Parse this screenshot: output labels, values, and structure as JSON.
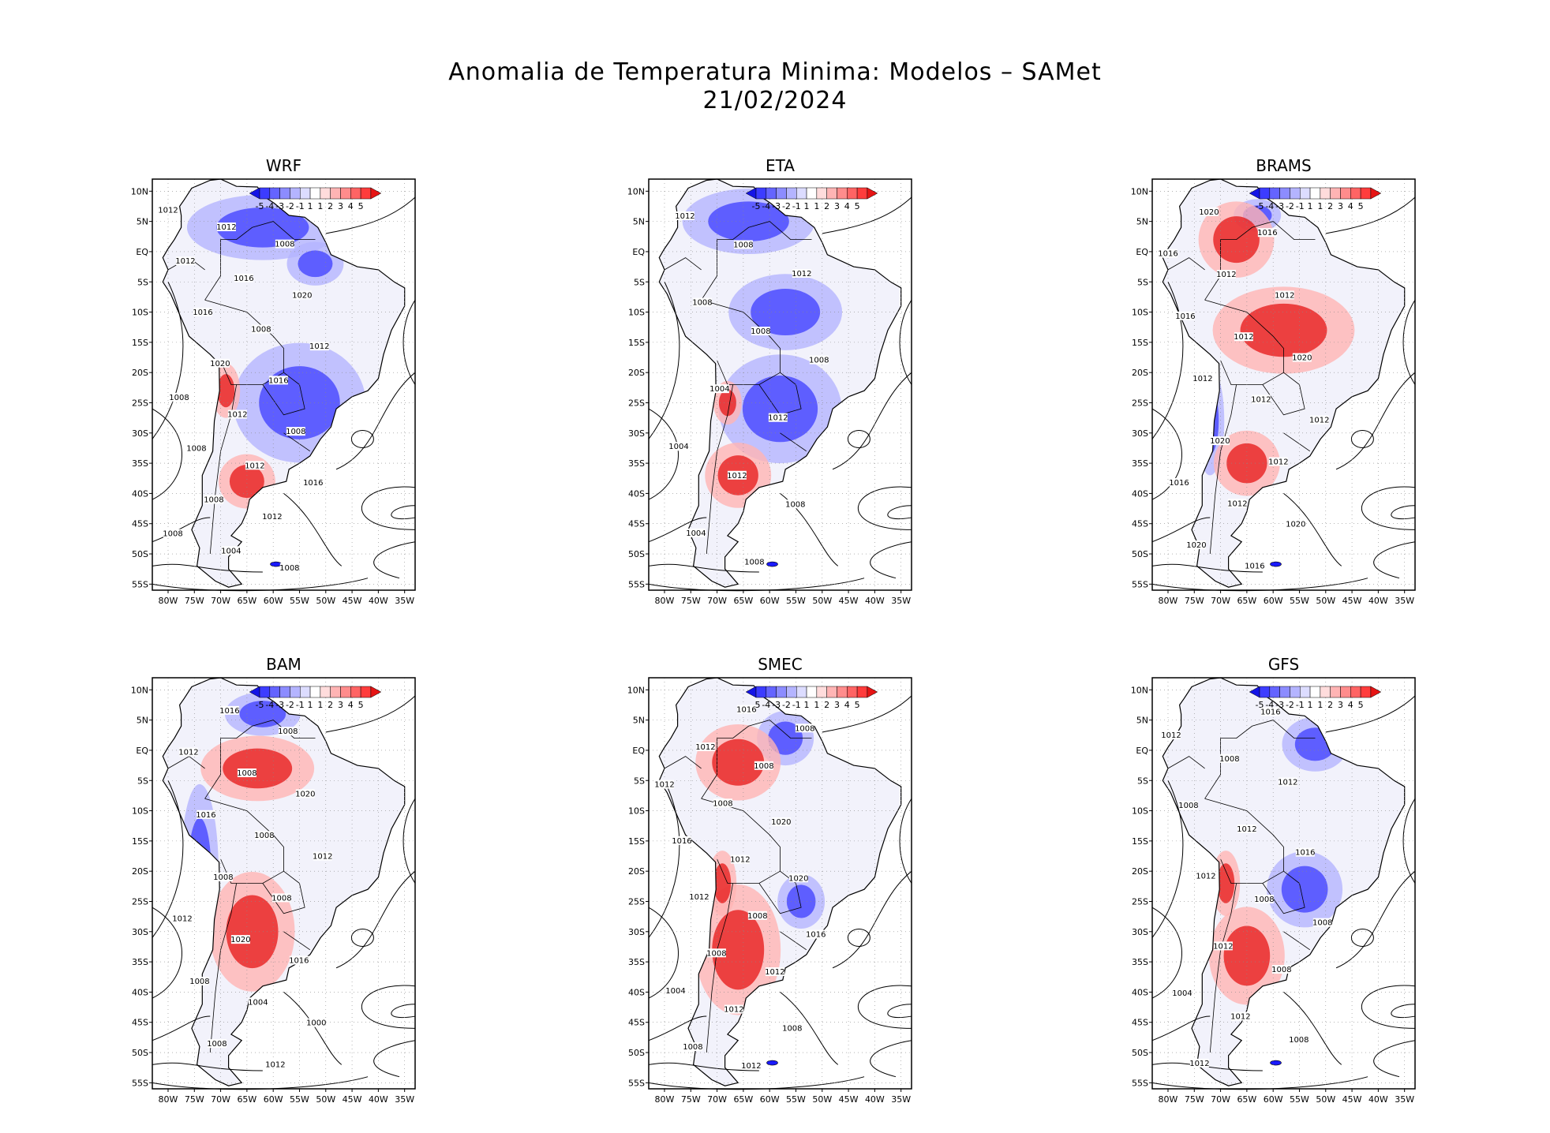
{
  "title": {
    "line1": "Anomalia de Temperatura Minima: Modelos – SAMet",
    "line2": "21/02/2024"
  },
  "colorbar": {
    "labels": [
      "-5",
      "-4",
      "-3",
      "-2",
      "-1",
      "1",
      "1",
      "2",
      "3",
      "4",
      "5"
    ],
    "colors": [
      "#1414e6",
      "#3c3cff",
      "#6464ff",
      "#8c8cff",
      "#b4b4ff",
      "#dcdcff",
      "#ffffff",
      "#ffdcdc",
      "#ffb4b4",
      "#ff8c8c",
      "#ff6464",
      "#ff3c3c",
      "#e61414"
    ]
  },
  "axes": {
    "lat_labels": [
      "10N",
      "5N",
      "EQ",
      "5S",
      "10S",
      "15S",
      "20S",
      "25S",
      "30S",
      "35S",
      "40S",
      "45S",
      "50S",
      "55S"
    ],
    "lon_labels": [
      "80W",
      "75W",
      "70W",
      "65W",
      "60W",
      "55W",
      "50W",
      "45W",
      "40W",
      "35W"
    ]
  },
  "panels": [
    {
      "name": "WRF",
      "cool": [
        [
          -62,
          4,
          16,
          6
        ],
        [
          -55,
          -25,
          14,
          11
        ],
        [
          -52,
          -2,
          6,
          4
        ]
      ],
      "warm": [
        [
          -65,
          -38,
          6,
          5
        ],
        [
          -69,
          -23,
          3,
          5
        ]
      ],
      "contours": [
        "1012",
        "1012",
        "1008",
        "1012",
        "1016",
        "1020",
        "1016",
        "1008",
        "1012",
        "1020",
        "1016",
        "1008",
        "1012",
        "1008",
        "1008",
        "1012",
        "1016",
        "1008",
        "1012",
        "1008",
        "1004",
        "1008"
      ]
    },
    {
      "name": "ETA",
      "cool": [
        [
          -64,
          5,
          14,
          6
        ],
        [
          -58,
          -26,
          13,
          10
        ],
        [
          -57,
          -10,
          12,
          7
        ]
      ],
      "warm": [
        [
          -66,
          -37,
          7,
          6
        ],
        [
          -68,
          -25,
          3,
          4
        ]
      ],
      "contours": [
        "1012",
        "1008",
        "1012",
        "1008",
        "1008",
        "1008",
        "1004",
        "1012",
        "1004",
        "1012",
        "1008",
        "1004",
        "1008"
      ]
    },
    {
      "name": "BRAMS",
      "cool": [
        [
          -63,
          6,
          5,
          3
        ],
        [
          -72,
          -28,
          3,
          10
        ]
      ],
      "warm": [
        [
          -65,
          -35,
          7,
          6
        ],
        [
          -67,
          2,
          8,
          7
        ],
        [
          -58,
          -13,
          15,
          8
        ]
      ],
      "contours": [
        "1020",
        "1016",
        "1016",
        "1012",
        "1012",
        "1016",
        "1012",
        "1020",
        "1012",
        "1012",
        "1012",
        "1020",
        "1012",
        "1016",
        "1012",
        "1020",
        "1020",
        "1016"
      ]
    },
    {
      "name": "BAM",
      "cool": [
        [
          -74,
          -20,
          4,
          16
        ],
        [
          -62,
          6,
          8,
          4
        ]
      ],
      "warm": [
        [
          -64,
          -30,
          9,
          11
        ],
        [
          -63,
          -3,
          12,
          6
        ]
      ],
      "contours": [
        "1016",
        "1008",
        "1012",
        "1008",
        "1020",
        "1016",
        "1008",
        "1012",
        "1008",
        "1008",
        "1012",
        "1020",
        "1016",
        "1008",
        "1004",
        "1000",
        "1008",
        "1012"
      ]
    },
    {
      "name": "SMEC",
      "cool": [
        [
          -54,
          -25,
          5,
          5
        ],
        [
          -57,
          2,
          6,
          5
        ]
      ],
      "warm": [
        [
          -66,
          -33,
          9,
          12
        ],
        [
          -69,
          -22,
          3,
          6
        ],
        [
          -66,
          -2,
          9,
          7
        ]
      ],
      "contours": [
        "1016",
        "1008",
        "1012",
        "1008",
        "1012",
        "1008",
        "1020",
        "1016",
        "1012",
        "1020",
        "1012",
        "1008",
        "1016",
        "1008",
        "1012",
        "1004",
        "1012",
        "1008",
        "1008",
        "1012"
      ]
    },
    {
      "name": "GFS",
      "cool": [
        [
          -54,
          -23,
          8,
          7
        ],
        [
          -52,
          1,
          7,
          5
        ]
      ],
      "warm": [
        [
          -65,
          -34,
          8,
          9
        ],
        [
          -69,
          -22,
          3,
          6
        ]
      ],
      "contours": [
        "1016",
        "1012",
        "1008",
        "1012",
        "1008",
        "1012",
        "1016",
        "1012",
        "1008",
        "1008",
        "1012",
        "1008",
        "1004",
        "1012",
        "1008",
        "1012"
      ]
    }
  ]
}
